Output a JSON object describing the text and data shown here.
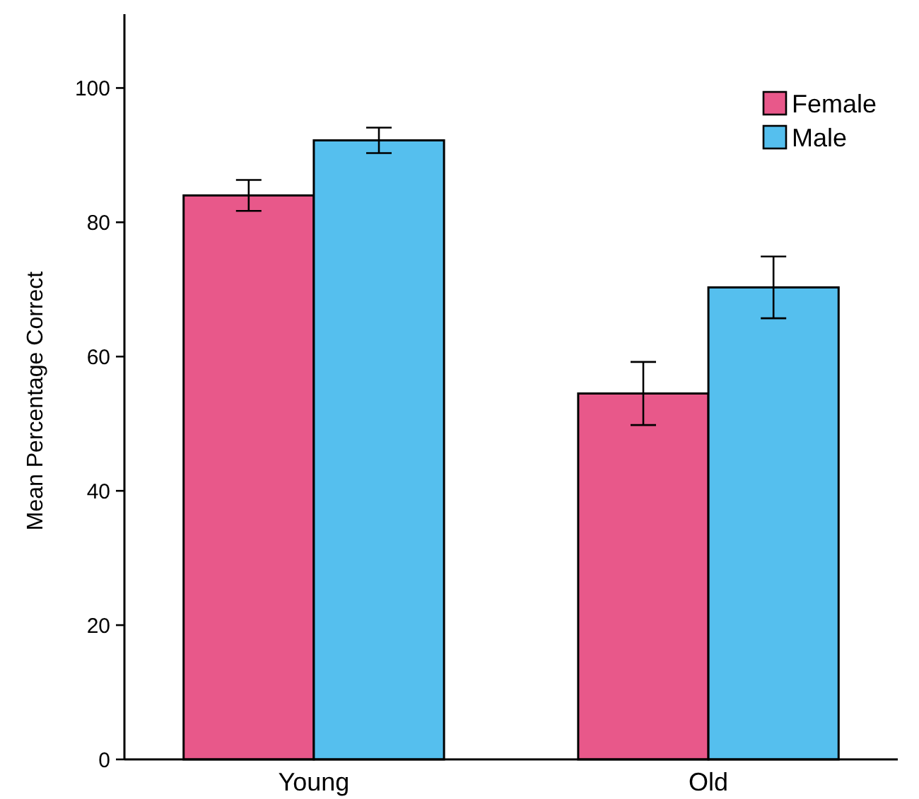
{
  "chart_data": {
    "type": "bar",
    "ylabel": "Mean Percentage Correct",
    "categories": [
      "Young",
      "Old"
    ],
    "series": [
      {
        "name": "Female",
        "color": "#e8588a",
        "values": [
          84,
          54.5
        ],
        "errors": [
          2.3,
          4.7
        ]
      },
      {
        "name": "Male",
        "color": "#55bfee",
        "values": [
          92.2,
          70.3
        ],
        "errors": [
          1.9,
          4.6
        ]
      }
    ],
    "ylim": [
      0,
      111
    ],
    "yticks": [
      0,
      20,
      40,
      60,
      80,
      100
    ],
    "grid": false,
    "legend": "top right"
  }
}
